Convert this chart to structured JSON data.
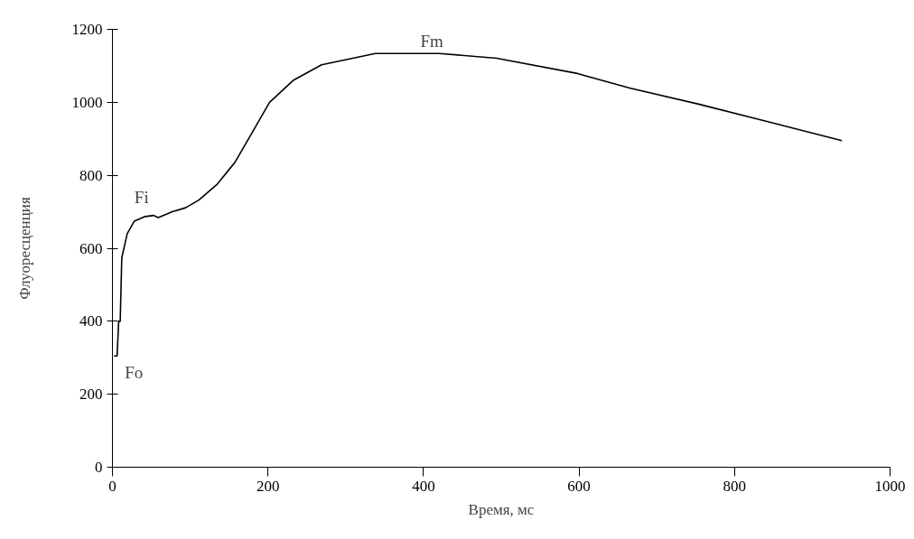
{
  "chart_data": {
    "type": "line",
    "xlabel": "Время, мс",
    "ylabel": "Флуоресценция",
    "x": [
      2,
      6,
      8,
      10,
      12,
      19,
      28,
      42,
      53,
      59,
      77,
      94,
      111,
      135,
      158,
      181,
      202,
      233,
      269,
      338,
      420,
      494,
      598,
      665,
      754,
      837,
      938
    ],
    "series": [
      {
        "color": "#000000",
        "values": [
          305,
          305,
          400,
          400,
          574,
          640,
          674,
          687,
          690,
          684,
          700,
          711,
          732,
          776,
          837,
          922,
          1000,
          1061,
          1103,
          1134,
          1134,
          1121,
          1079,
          1039,
          995,
          950,
          895
        ]
      }
    ],
    "xlim": [
      0,
      1000
    ],
    "ylim": [
      0,
      1200
    ],
    "xticks": [
      0,
      200,
      400,
      600,
      800,
      1000
    ],
    "yticks": [
      0,
      200,
      400,
      600,
      800,
      1000,
      1200
    ],
    "annotations": [
      {
        "text": "Fo",
        "x": 2,
        "y": 305
      },
      {
        "text": "Fi",
        "x": 19,
        "y": 640
      },
      {
        "text": "Fm",
        "x": 338,
        "y": 1134
      }
    ],
    "grid": false,
    "marker": "none",
    "line_style": "solid"
  }
}
